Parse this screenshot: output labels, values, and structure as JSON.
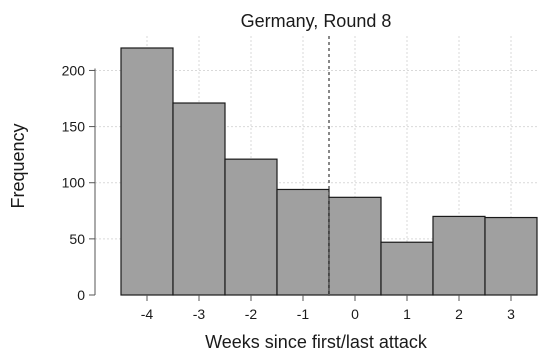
{
  "chart_data": {
    "type": "bar",
    "title": "Germany, Round 8",
    "xlabel": "Weeks since first/last attack",
    "ylabel": "Frequency",
    "categories": [
      "-4",
      "-3",
      "-2",
      "-1",
      "0",
      "1",
      "2",
      "3"
    ],
    "values": [
      220,
      171,
      121,
      94,
      87,
      47,
      70,
      69
    ],
    "ylim": [
      0,
      220
    ],
    "yticks": [
      "0",
      "50",
      "100",
      "150",
      "200"
    ],
    "xlim": [
      -5,
      3.5
    ],
    "grid": true,
    "reference_line_x": -0.5,
    "colors": {
      "bar_fill": "#a0a0a0",
      "bar_stroke": "#1a1a1a",
      "grid": "#d9d9d9",
      "refline": "#606060"
    }
  }
}
